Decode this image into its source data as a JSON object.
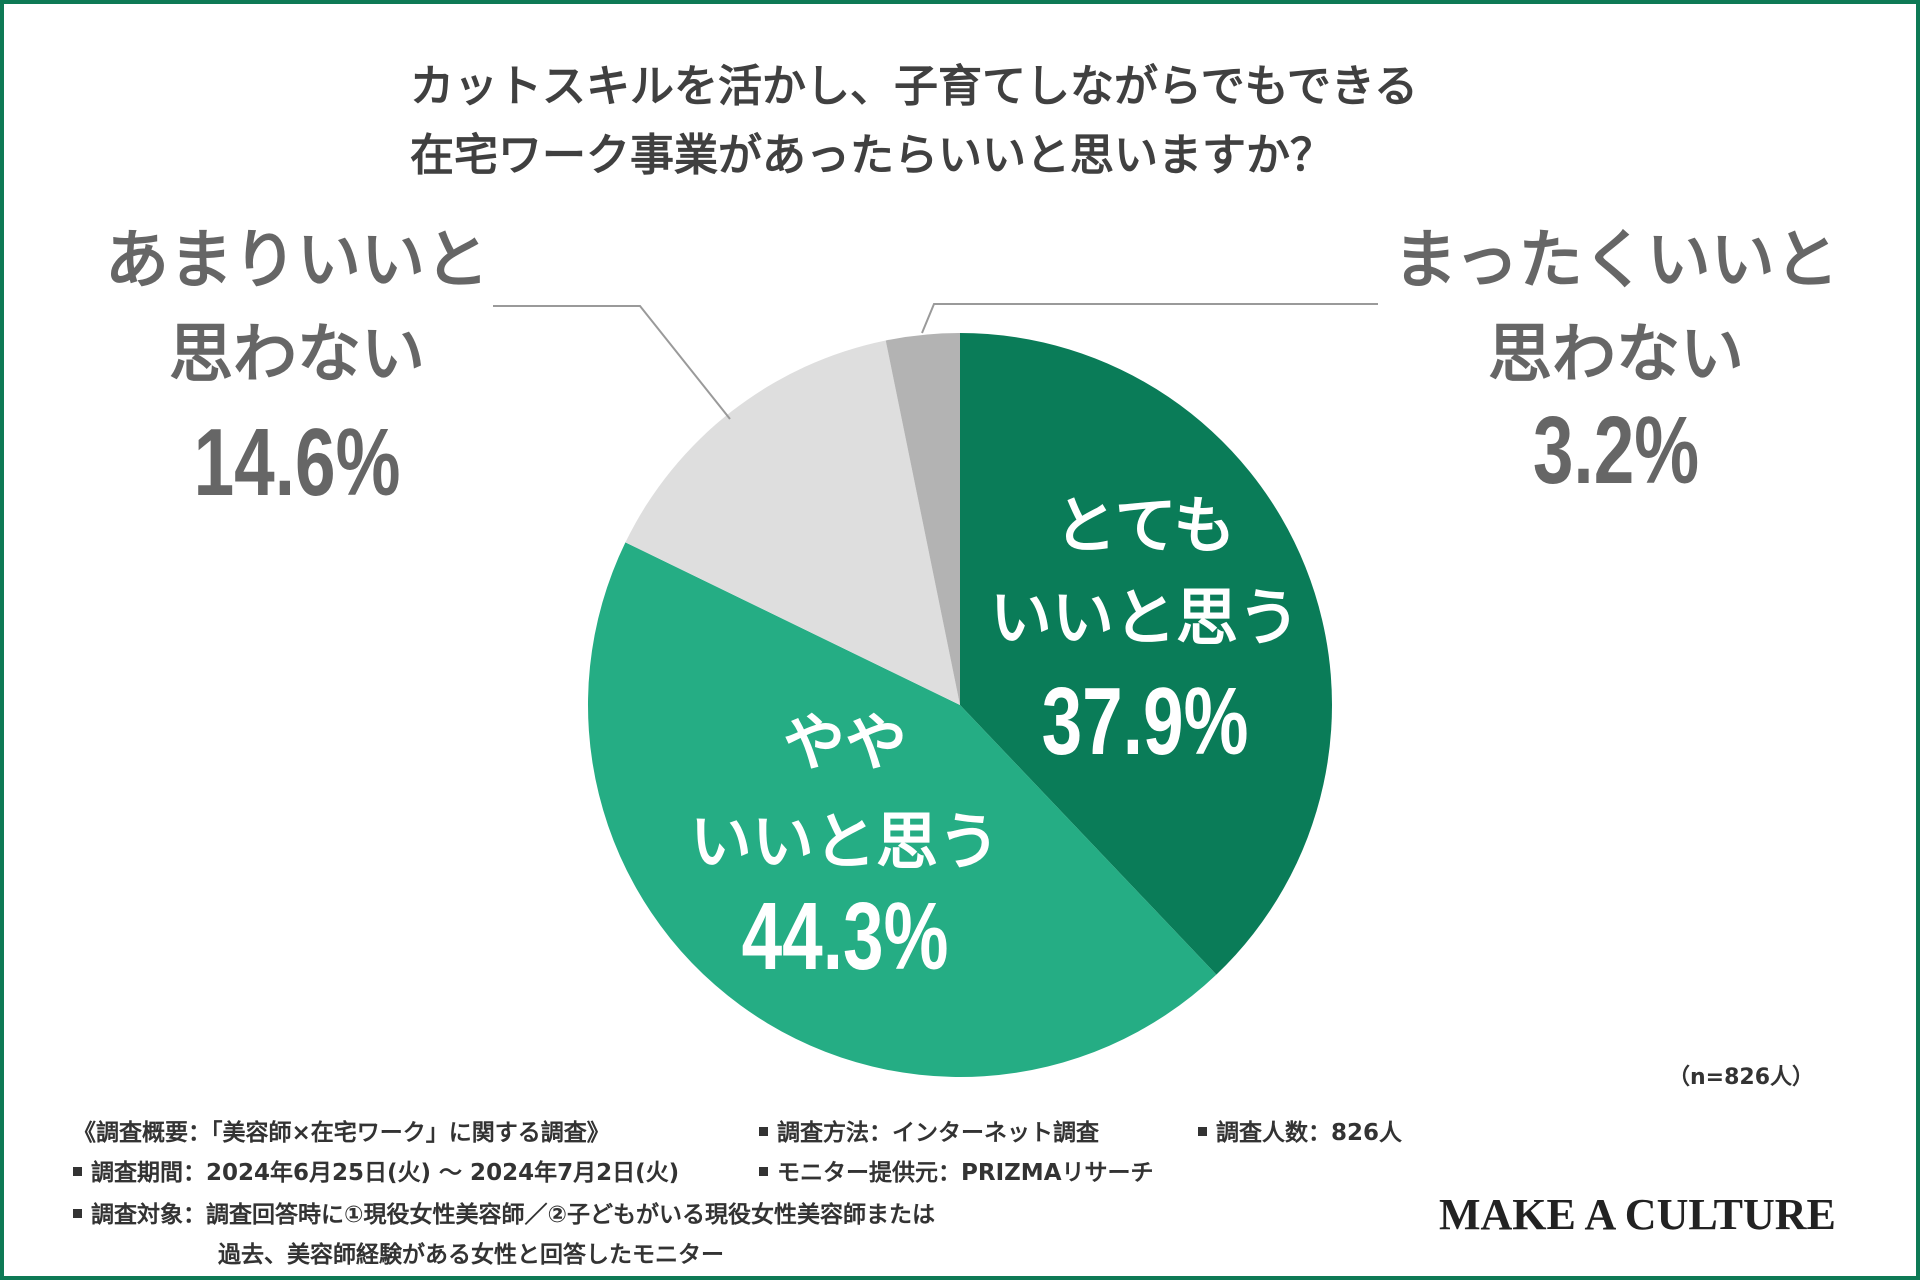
{
  "chart_data": {
    "type": "pie",
    "title": "カットスキルを活かし、子育てしながらでもできる\n在宅ワーク事業があったらいいと思いますか？",
    "categories": [
      "とても\nいいと思う",
      "やや\nいいと思う",
      "あまりいいと\n思わない",
      "まったくいいと\n思わない"
    ],
    "values": [
      37.9,
      44.3,
      14.6,
      3.2
    ],
    "value_labels": [
      "37.9%",
      "44.3%",
      "14.6%",
      "3.2%"
    ],
    "colors": [
      "#0a7c58",
      "#25ad84",
      "#dedede",
      "#b3b3b3"
    ],
    "start": "12 o'clock",
    "direction": "clockwise",
    "sample_size": "（n=826人）"
  },
  "survey_notes": {
    "overview": "《調査概要：「美容師×在宅ワーク」に関する調査》",
    "method": "調査方法：インターネット調査",
    "respondents": "調査人数：826人",
    "period": "調査期間：2024年6月25日(火) 〜 2024年7月2日(火)",
    "provider": "モニター提供元：PRIZMAリサーチ",
    "target_line1": "調査対象：調査回答時に①現役女性美容師／②子どもがいる現役女性美容師または",
    "target_line2": "過去、美容師経験がある女性と回答したモニター"
  },
  "logo": "MAKE A CULTURE",
  "colors": {
    "frame": "#0e7a55",
    "title_text": "#404040",
    "outside_label_text": "#666666",
    "leader_line": "#9a9a9a"
  },
  "icons": {
    "note_bullet": "square-bullet-icon"
  }
}
